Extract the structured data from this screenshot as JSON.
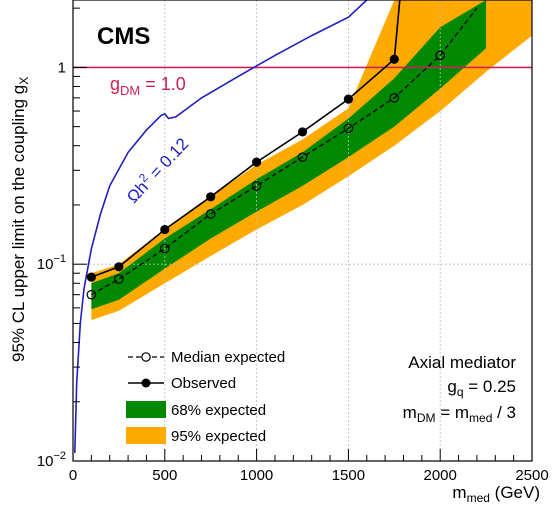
{
  "chart_data": {
    "type": "line",
    "title": "",
    "experiment_label": "CMS",
    "xlabel": "m",
    "xlabel_sub": "med",
    "xlabel_unit": " (GeV)",
    "ylabel": "95% CL upper limit on the coupling g",
    "ylabel_sub": "X",
    "xlim": [
      0,
      2500
    ],
    "ylim": [
      0.01,
      2.2
    ],
    "yscale": "log",
    "x_ticks": [
      "0",
      "500",
      "1000",
      "1500",
      "2000",
      "2500"
    ],
    "y_ticks": [
      {
        "base": "10",
        "exp": "−2"
      },
      {
        "base": "10",
        "exp": "−1"
      },
      {
        "base": "1",
        "exp": ""
      }
    ],
    "grid": true,
    "band_95": {
      "x": [
        100,
        250,
        500,
        750,
        1000,
        1250,
        1500,
        1750,
        2000,
        2250,
        2500
      ],
      "lower": [
        0.052,
        0.058,
        0.08,
        0.11,
        0.15,
        0.2,
        0.28,
        0.4,
        0.6,
        0.95,
        1.45
      ],
      "upper": [
        0.09,
        0.1,
        0.15,
        0.22,
        0.32,
        0.43,
        0.62,
        2.2,
        2.2,
        2.2,
        2.2
      ]
    },
    "band_68": {
      "x": [
        100,
        250,
        500,
        750,
        1000,
        1250,
        1500,
        1750,
        2000,
        2250
      ],
      "lower": [
        0.059,
        0.066,
        0.095,
        0.135,
        0.185,
        0.25,
        0.35,
        0.5,
        0.78,
        1.25
      ],
      "upper": [
        0.08,
        0.09,
        0.135,
        0.19,
        0.27,
        0.37,
        0.55,
        0.88,
        1.6,
        2.2
      ]
    },
    "median_expected": {
      "x": [
        100,
        250,
        500,
        750,
        1000,
        1250,
        1500,
        1750,
        2000,
        2200
      ],
      "y": [
        0.07,
        0.084,
        0.12,
        0.18,
        0.25,
        0.35,
        0.49,
        0.7,
        1.15,
        2.0
      ]
    },
    "observed": {
      "x": [
        100,
        250,
        500,
        750,
        1000,
        1250,
        1500,
        1750,
        1780
      ],
      "y": [
        0.086,
        0.097,
        0.15,
        0.22,
        0.33,
        0.47,
        0.69,
        1.1,
        2.2
      ]
    },
    "relic_density": {
      "label_lhs": "Ωh",
      "label_sup": "2",
      "label_rhs": " = 0.12",
      "x": [
        10,
        20,
        40,
        60,
        100,
        150,
        200,
        300,
        400,
        480,
        500,
        520,
        560,
        700,
        900,
        1100,
        1300,
        1500,
        1600
      ],
      "y": [
        0.011,
        0.025,
        0.05,
        0.075,
        0.12,
        0.18,
        0.25,
        0.37,
        0.48,
        0.57,
        0.58,
        0.55,
        0.56,
        0.7,
        0.9,
        1.15,
        1.45,
        1.8,
        2.2
      ]
    },
    "gdm_line": {
      "y": 1.0,
      "label_lhs": "g",
      "label_sub": "DM",
      "label_rhs": " = 1.0"
    },
    "legend": {
      "placement": "bottom-left",
      "entries": [
        "Median expected",
        "Observed",
        "68% expected",
        "95% expected"
      ]
    },
    "info_box": {
      "line1": "Axial mediator",
      "line2_lhs": "g",
      "line2_sub": "q",
      "line2_rhs": " = 0.25",
      "line3_m1": "m",
      "line3_sub1": "DM",
      "line3_eq": " = m",
      "line3_sub2": "med",
      "line3_rhs": " / 3"
    },
    "colors": {
      "band_95": "#ffaa00",
      "band_68": "#008800",
      "observed": "#000000",
      "expected": "#000000",
      "relic": "#1f1fbf",
      "gdm": "#cc2255",
      "grid": "#bbbbbb"
    }
  }
}
